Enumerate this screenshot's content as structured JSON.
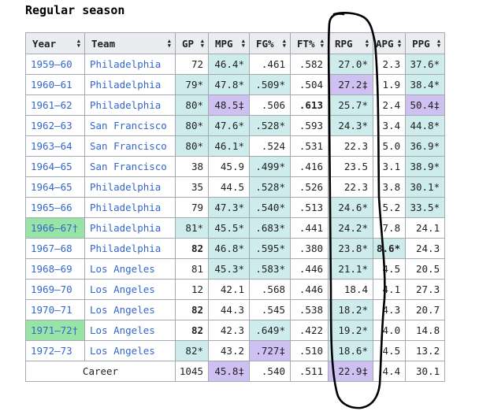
{
  "heading": "Regular season",
  "colors": {
    "header_bg": "#eaecf0",
    "led_league": "#cfecec",
    "nba_record": "#cfc0f2",
    "champion": "#98e4a6",
    "link": "#3366cc"
  },
  "columns": [
    "Year",
    "Team",
    "GP",
    "MPG",
    "FG%",
    "FT%",
    "RPG",
    "APG",
    "PPG"
  ],
  "rows": [
    {
      "year": "1959–60",
      "team": "Philadelphia",
      "gp": "72",
      "mpg": "46.4*",
      "fg": ".461",
      "ft": ".582",
      "rpg": "27.0*",
      "apg": "2.3",
      "ppg": "37.6*"
    },
    {
      "year": "1960–61",
      "team": "Philadelphia",
      "gp": "79*",
      "mpg": "47.8*",
      "fg": ".509*",
      "ft": ".504",
      "rpg": "27.2‡",
      "apg": "1.9",
      "ppg": "38.4*"
    },
    {
      "year": "1961–62",
      "team": "Philadelphia",
      "gp": "80*",
      "mpg": "48.5‡",
      "fg": ".506",
      "ft": ".613",
      "rpg": "25.7*",
      "apg": "2.4",
      "ppg": "50.4‡"
    },
    {
      "year": "1962–63",
      "team": "San Francisco",
      "gp": "80*",
      "mpg": "47.6*",
      "fg": ".528*",
      "ft": ".593",
      "rpg": "24.3*",
      "apg": "3.4",
      "ppg": "44.8*"
    },
    {
      "year": "1963–64",
      "team": "San Francisco",
      "gp": "80*",
      "mpg": "46.1*",
      "fg": ".524",
      "ft": ".531",
      "rpg": "22.3",
      "apg": "5.0",
      "ppg": "36.9*"
    },
    {
      "year": "1964–65",
      "team": "San Francisco",
      "gp": "38",
      "mpg": "45.9",
      "fg": ".499*",
      "ft": ".416",
      "rpg": "23.5",
      "apg": "3.1",
      "ppg": "38.9*"
    },
    {
      "year": "1964–65",
      "team": "Philadelphia",
      "gp": "35",
      "mpg": "44.5",
      "fg": ".528*",
      "ft": ".526",
      "rpg": "22.3",
      "apg": "3.8",
      "ppg": "30.1*"
    },
    {
      "year": "1965–66",
      "team": "Philadelphia",
      "gp": "79",
      "mpg": "47.3*",
      "fg": ".540*",
      "ft": ".513",
      "rpg": "24.6*",
      "apg": "5.2",
      "ppg": "33.5*"
    },
    {
      "year": "1966–67†",
      "team": "Philadelphia",
      "gp": "81*",
      "mpg": "45.5*",
      "fg": ".683*",
      "ft": ".441",
      "rpg": "24.2*",
      "apg": "7.8",
      "ppg": "24.1"
    },
    {
      "year": "1967–68",
      "team": "Philadelphia",
      "gp": "82",
      "mpg": "46.8*",
      "fg": ".595*",
      "ft": ".380",
      "rpg": "23.8*",
      "apg": "8.6*",
      "ppg": "24.3"
    },
    {
      "year": "1968–69",
      "team": "Los Angeles",
      "gp": "81",
      "mpg": "45.3*",
      "fg": ".583*",
      "ft": ".446",
      "rpg": "21.1*",
      "apg": "4.5",
      "ppg": "20.5"
    },
    {
      "year": "1969–70",
      "team": "Los Angeles",
      "gp": "12",
      "mpg": "42.1",
      "fg": ".568",
      "ft": ".446",
      "rpg": "18.4",
      "apg": "4.1",
      "ppg": "27.3"
    },
    {
      "year": "1970–71",
      "team": "Los Angeles",
      "gp": "82",
      "mpg": "44.3",
      "fg": ".545",
      "ft": ".538",
      "rpg": "18.2*",
      "apg": "4.3",
      "ppg": "20.7"
    },
    {
      "year": "1971–72†",
      "team": "Los Angeles",
      "gp": "82",
      "mpg": "42.3",
      "fg": ".649*",
      "ft": ".422",
      "rpg": "19.2*",
      "apg": "4.0",
      "ppg": "14.8"
    },
    {
      "year": "1972–73",
      "team": "Los Angeles",
      "gp": "82*",
      "mpg": "43.2",
      "fg": ".727‡",
      "ft": ".510",
      "rpg": "18.6*",
      "apg": "4.5",
      "ppg": "13.2"
    }
  ],
  "career": {
    "label": "Career",
    "gp": "1045",
    "mpg": "45.8‡",
    "fg": ".540",
    "ft": ".511",
    "rpg": "22.9‡",
    "apg": "4.4",
    "ppg": "30.1"
  }
}
